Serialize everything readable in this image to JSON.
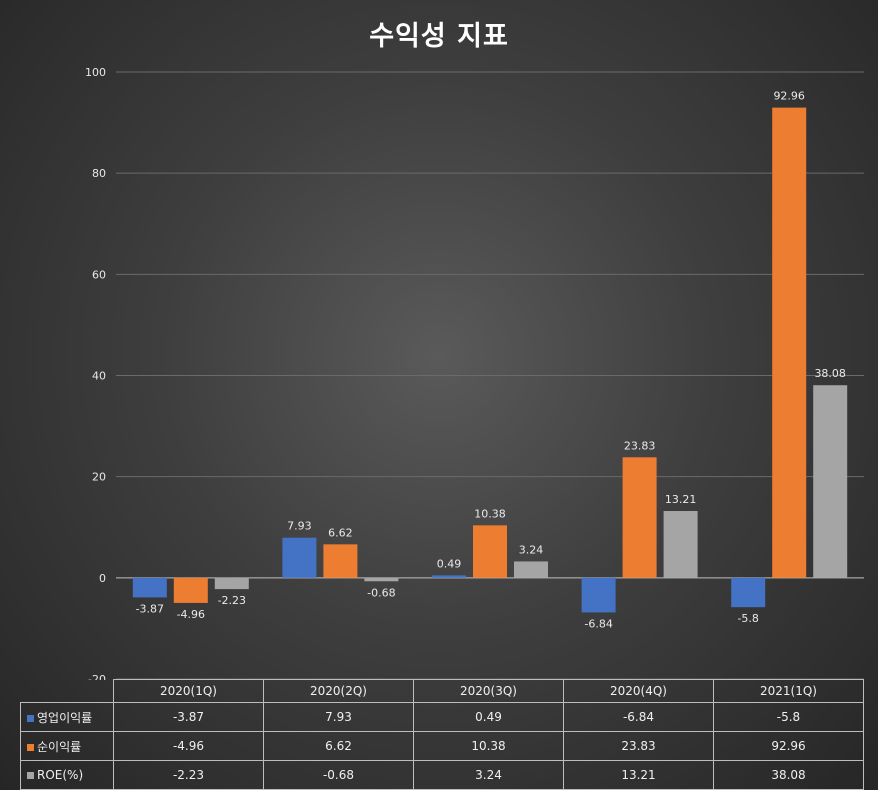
{
  "chart_data": {
    "type": "bar",
    "title": "수익성 지표",
    "categories": [
      "2020(1Q)",
      "2020(2Q)",
      "2020(3Q)",
      "2020(4Q)",
      "2021(1Q)"
    ],
    "series": [
      {
        "name": "영업이익률",
        "color": "#4472c4",
        "values": [
          -3.87,
          7.93,
          0.49,
          -6.84,
          -5.8
        ],
        "labels": [
          "-3.87",
          "7.93",
          "0.49",
          "-6.84",
          "-5.8"
        ]
      },
      {
        "name": "순이익률",
        "color": "#ed7d31",
        "values": [
          -4.96,
          6.62,
          10.38,
          23.83,
          92.96
        ],
        "labels": [
          "-4.96",
          "6.62",
          "10.38",
          "23.83",
          "92.96"
        ]
      },
      {
        "name": "ROE(%)",
        "color": "#a5a5a5",
        "values": [
          -2.23,
          -0.68,
          3.24,
          13.21,
          38.08
        ],
        "labels": [
          "-2.23",
          "-0.68",
          "3.24",
          "13.21",
          "38.08"
        ]
      }
    ],
    "yticks": [
      "-20",
      "0",
      "20",
      "40",
      "60",
      "80",
      "100"
    ],
    "ylim": [
      -20,
      100
    ],
    "grid": true,
    "legend": "data-table"
  }
}
